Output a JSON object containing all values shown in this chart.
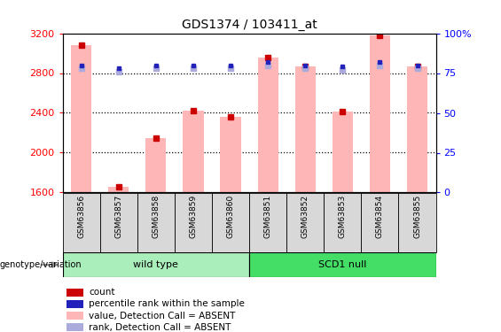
{
  "title": "GDS1374 / 103411_at",
  "samples": [
    "GSM63856",
    "GSM63857",
    "GSM63858",
    "GSM63859",
    "GSM63860",
    "GSM63851",
    "GSM63852",
    "GSM63853",
    "GSM63854",
    "GSM63855"
  ],
  "bar_values": [
    3080,
    1660,
    2150,
    2420,
    2360,
    2960,
    2870,
    2410,
    3180,
    2870
  ],
  "rank_values": [
    78,
    76,
    78,
    78,
    78,
    80,
    78,
    77,
    80,
    78
  ],
  "bar_color": "#FFB6B6",
  "rank_color": "#AAAADD",
  "dot_red_color": "#CC0000",
  "dot_blue_color": "#2222BB",
  "ylim_left": [
    1600,
    3200
  ],
  "ylim_right": [
    0,
    100
  ],
  "yticks_left": [
    1600,
    2000,
    2400,
    2800,
    3200
  ],
  "yticks_right": [
    0,
    25,
    50,
    75,
    100
  ],
  "legend_items": [
    {
      "label": "count",
      "color": "#CC0000"
    },
    {
      "label": "percentile rank within the sample",
      "color": "#2222BB"
    },
    {
      "label": "value, Detection Call = ABSENT",
      "color": "#FFB6B6"
    },
    {
      "label": "rank, Detection Call = ABSENT",
      "color": "#AAAADD"
    }
  ],
  "group1_color_light": "#AAEEBB",
  "group1_color": "#55CC77",
  "group2_color": "#22DD55",
  "cell_color": "#D8D8D8"
}
